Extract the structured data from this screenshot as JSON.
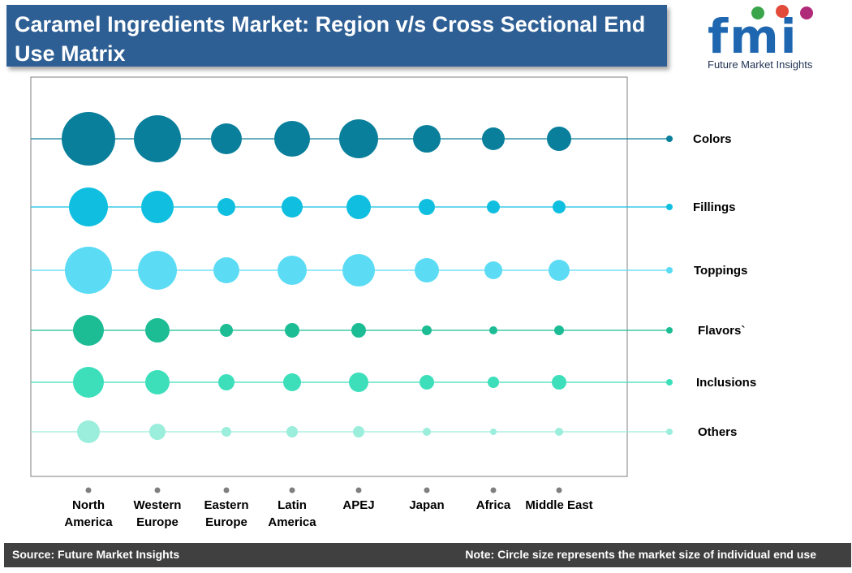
{
  "title": "Caramel Ingredients Market: Region v/s Cross Sectional End Use Matrix",
  "logo": {
    "letters": "fmi",
    "tagline": "Future Market Insights",
    "icon": "fmi-logo-icon"
  },
  "footer": {
    "source": "Source: Future Market Insights",
    "note": "Note: Circle size represents the market size of individual end use"
  },
  "colors": {
    "title_bg": "#2e5f94",
    "footer_bg": "#404040",
    "Colors": "#0a7f9b",
    "Fillings": "#10bfe0",
    "Toppings": "#5bdcf4",
    "Flavors`": "#1cbc94",
    "Inclusions": "#3ddfbb",
    "Others": "#9aeedb"
  },
  "chart_data": {
    "type": "bubble-matrix",
    "regions": [
      [
        "North",
        "America"
      ],
      [
        "Western",
        "Europe"
      ],
      [
        "Eastern",
        "Europe"
      ],
      [
        "Latin",
        "America"
      ],
      [
        "APEJ"
      ],
      [
        "Japan"
      ],
      [
        "Africa"
      ],
      [
        "Middle East"
      ]
    ],
    "end_uses": [
      "Colors",
      "Fillings",
      "Toppings",
      "Flavors`",
      "Inclusions",
      "Others"
    ],
    "relative_sizes": [
      [
        33,
        29,
        19,
        22,
        24,
        17,
        14,
        15
      ],
      [
        24,
        20,
        11,
        13,
        15,
        10,
        8,
        8
      ],
      [
        29,
        24,
        16,
        18,
        20,
        15,
        11,
        13
      ],
      [
        19,
        15,
        8,
        9,
        9,
        6,
        5,
        6
      ],
      [
        19,
        15,
        10,
        11,
        12,
        9,
        7,
        9
      ],
      [
        14,
        10,
        6,
        7,
        7,
        5,
        4,
        5
      ]
    ]
  }
}
